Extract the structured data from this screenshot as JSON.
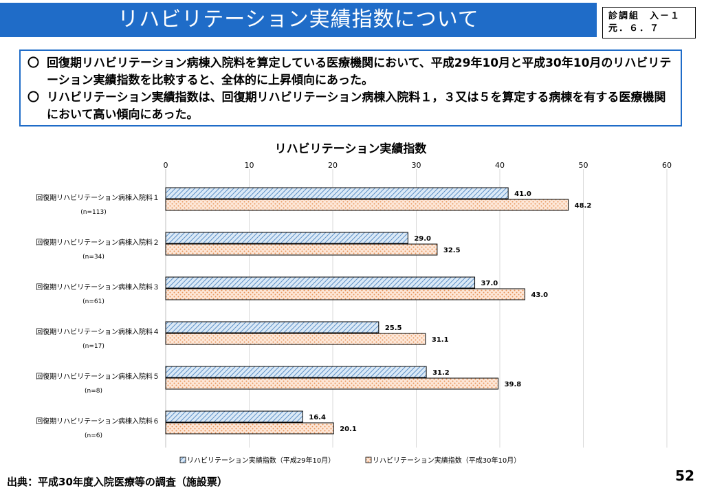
{
  "header": {
    "title": "リハビリテーション実績指数について",
    "code_line1": "診調組　入－１",
    "code_line2": "元．６．７"
  },
  "summary": {
    "bullet_mark": "〇",
    "items": [
      "回復期リハビリテーション病棟入院料を算定している医療機関において、平成29年10月と平成30年10月のリハビリテーション実績指数を比較すると、全体的に上昇傾向にあった。",
      "リハビリテーション実績指数は、回復期リハビリテーション病棟入院料１，３又は５を算定する病棟を有する医療機関において高い傾向にあった。"
    ]
  },
  "chart_data": {
    "type": "bar",
    "orientation": "horizontal",
    "title": "リハビリテーション実績指数",
    "xlim": [
      0,
      60
    ],
    "ticks": [
      0,
      10,
      20,
      30,
      40,
      50,
      60
    ],
    "grid": true,
    "legend_position": "bottom",
    "categories": [
      {
        "label": "回復期リハビリテーション病棟入院料１",
        "n": "(n=113)"
      },
      {
        "label": "回復期リハビリテーション病棟入院料２",
        "n": "(n=34)"
      },
      {
        "label": "回復期リハビリテーション病棟入院料３",
        "n": "(n=61)"
      },
      {
        "label": "回復期リハビリテーション病棟入院料４",
        "n": "(n=17)"
      },
      {
        "label": "回復期リハビリテーション病棟入院料５",
        "n": "(n=8)"
      },
      {
        "label": "回復期リハビリテーション病棟入院料６",
        "n": "(n=6)"
      }
    ],
    "series": [
      {
        "name": "リハビリテーション実績指数（平成29年10月）",
        "values": [
          41.0,
          29.0,
          37.0,
          25.5,
          31.2,
          16.4
        ],
        "color": "#9dc3e6",
        "pattern": "diagonal-hatch"
      },
      {
        "name": "リハビリテーション実績指数（平成30年10月）",
        "values": [
          48.2,
          32.5,
          43.0,
          31.1,
          39.8,
          20.1
        ],
        "color": "#f4b183",
        "pattern": "dots"
      }
    ]
  },
  "footer": {
    "source": "出典：平成30年度入院医療等の調査（施設票）",
    "page": "52"
  }
}
